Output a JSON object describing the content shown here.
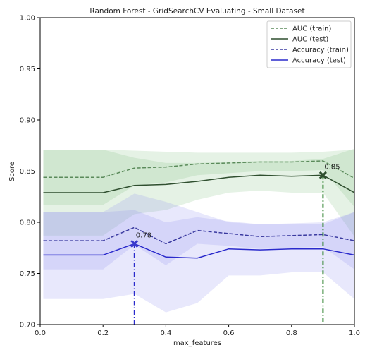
{
  "chart_data": {
    "type": "line",
    "title": "Random Forest - GridSearchCV Evaluating - Small Dataset",
    "xlabel": "max_features",
    "ylabel": "Score",
    "xlim": [
      0.0,
      1.0
    ],
    "ylim": [
      0.7,
      1.0
    ],
    "xticks": [
      "0.0",
      "0.2",
      "0.4",
      "0.6",
      "0.8",
      "1.0"
    ],
    "yticks": [
      "0.70",
      "0.75",
      "0.80",
      "0.85",
      "0.90",
      "0.95",
      "1.00"
    ],
    "x": [
      0.01,
      0.2,
      0.3,
      0.4,
      0.5,
      0.6,
      0.7,
      0.8,
      0.9,
      1.0
    ],
    "grid": false,
    "legend_position": "top-right",
    "series": [
      {
        "name": "AUC (train)",
        "color": "#5a8a5a",
        "dash": "dashed",
        "values": [
          0.844,
          0.844,
          0.853,
          0.854,
          0.857,
          0.858,
          0.859,
          0.859,
          0.86,
          0.843
        ],
        "band_upper": [
          0.871,
          0.871,
          0.87,
          0.869,
          0.868,
          0.868,
          0.868,
          0.868,
          0.869,
          0.871
        ],
        "band_lower": [
          0.817,
          0.817,
          0.836,
          0.839,
          0.846,
          0.848,
          0.85,
          0.85,
          0.851,
          0.815
        ],
        "band_color": "#7fbf7f"
      },
      {
        "name": "AUC (test)",
        "color": "#2f4f2f",
        "dash": "solid",
        "values": [
          0.829,
          0.829,
          0.836,
          0.837,
          0.84,
          0.844,
          0.846,
          0.845,
          0.846,
          0.829
        ],
        "band_upper": [
          0.871,
          0.871,
          0.863,
          0.858,
          0.858,
          0.859,
          0.86,
          0.86,
          0.862,
          0.872
        ],
        "band_lower": [
          0.787,
          0.787,
          0.808,
          0.812,
          0.822,
          0.829,
          0.831,
          0.829,
          0.829,
          0.786
        ],
        "band_color": "#7fbf7f"
      },
      {
        "name": "Accuracy (train)",
        "color": "#3a3aa0",
        "dash": "dashed",
        "values": [
          0.782,
          0.782,
          0.795,
          0.779,
          0.792,
          0.789,
          0.786,
          0.787,
          0.788,
          0.782
        ],
        "band_upper": [
          0.81,
          0.81,
          0.812,
          0.8,
          0.805,
          0.801,
          0.798,
          0.799,
          0.8,
          0.81
        ],
        "band_lower": [
          0.754,
          0.754,
          0.778,
          0.758,
          0.779,
          0.777,
          0.774,
          0.775,
          0.776,
          0.754
        ],
        "band_color": "#8a8af0"
      },
      {
        "name": "Accuracy (test)",
        "color": "#2a2acc",
        "dash": "solid",
        "values": [
          0.768,
          0.768,
          0.779,
          0.766,
          0.765,
          0.774,
          0.773,
          0.774,
          0.774,
          0.768
        ],
        "band_upper": [
          0.81,
          0.81,
          0.828,
          0.82,
          0.81,
          0.8,
          0.798,
          0.798,
          0.798,
          0.81
        ],
        "band_lower": [
          0.725,
          0.725,
          0.73,
          0.712,
          0.721,
          0.748,
          0.748,
          0.751,
          0.751,
          0.725
        ],
        "band_color": "#8a8af0"
      }
    ],
    "annotations": [
      {
        "series": "AUC (test)",
        "x": 0.9,
        "y": 0.846,
        "label": "0.85",
        "color": "#2f4f2f",
        "vline_color": "#3a8a3a"
      },
      {
        "series": "Accuracy (test)",
        "x": 0.3,
        "y": 0.779,
        "label": "0.78",
        "color": "#3a3acc",
        "vline_color": "#2a2acc"
      }
    ]
  }
}
